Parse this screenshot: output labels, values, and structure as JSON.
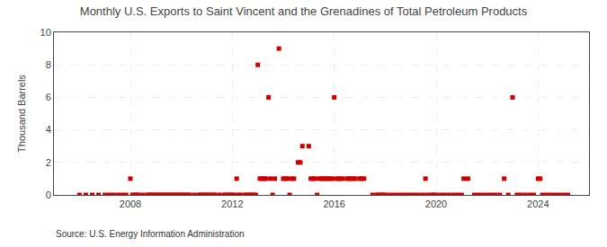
{
  "chart_data": {
    "type": "scatter",
    "title": "Monthly U.S. Exports to Saint Vincent and the Grenadines of Total Petroleum Products",
    "ylabel": "Thousand Barrels",
    "annotations": [
      "Source: U.S. Energy Information Administration"
    ],
    "color": "#cc0000",
    "marker": "square",
    "grid": true,
    "xlim": [
      2005.0,
      2026.0
    ],
    "xticks": [
      2008,
      2012,
      2016,
      2020,
      2024
    ],
    "ylim": [
      0,
      10
    ],
    "yticks": [
      0,
      2,
      4,
      6,
      8,
      10
    ],
    "x": [
      2006.0,
      2006.25,
      2006.5,
      2006.75,
      2007.0,
      2007.17,
      2007.33,
      2007.5,
      2007.67,
      2007.83,
      2008.0,
      2008.08,
      2008.17,
      2008.25,
      2008.33,
      2008.5,
      2008.67,
      2008.75,
      2008.83,
      2008.92,
      2009.0,
      2009.08,
      2009.17,
      2009.25,
      2009.33,
      2009.42,
      2009.5,
      2009.58,
      2009.67,
      2009.75,
      2009.83,
      2009.92,
      2010.0,
      2010.08,
      2010.17,
      2010.25,
      2010.33,
      2010.5,
      2010.67,
      2010.75,
      2010.83,
      2010.92,
      2011.0,
      2011.08,
      2011.17,
      2011.25,
      2011.33,
      2011.5,
      2011.67,
      2011.75,
      2011.83,
      2011.92,
      2012.0,
      2012.08,
      2012.17,
      2012.25,
      2012.33,
      2012.5,
      2012.58,
      2012.67,
      2012.75,
      2012.83,
      2012.92,
      2013.0,
      2013.08,
      2013.17,
      2013.25,
      2013.33,
      2013.42,
      2013.5,
      2013.58,
      2013.67,
      2013.83,
      2014.0,
      2014.08,
      2014.17,
      2014.25,
      2014.33,
      2014.42,
      2014.58,
      2014.67,
      2014.75,
      2015.0,
      2015.08,
      2015.17,
      2015.25,
      2015.33,
      2015.42,
      2015.5,
      2015.58,
      2015.67,
      2015.75,
      2015.83,
      2015.92,
      2016.0,
      2016.08,
      2016.17,
      2016.25,
      2016.33,
      2016.5,
      2016.58,
      2016.67,
      2016.75,
      2016.83,
      2017.0,
      2017.08,
      2017.17,
      2017.5,
      2017.67,
      2017.75,
      2017.83,
      2017.92,
      2018.0,
      2018.17,
      2018.33,
      2018.5,
      2018.67,
      2018.83,
      2019.0,
      2019.17,
      2019.33,
      2019.5,
      2019.58,
      2019.67,
      2019.83,
      2019.92,
      2020.0,
      2020.17,
      2020.33,
      2020.5,
      2020.67,
      2020.83,
      2021.0,
      2021.08,
      2021.25,
      2021.5,
      2021.67,
      2021.83,
      2022.0,
      2022.17,
      2022.33,
      2022.5,
      2022.67,
      2022.83,
      2023.0,
      2023.17,
      2023.33,
      2023.5,
      2023.67,
      2023.83,
      2024.0,
      2024.08,
      2024.17,
      2024.33,
      2024.5,
      2024.67,
      2024.83,
      2025.0,
      2025.17
    ],
    "values": [
      0,
      0,
      0,
      0,
      0,
      0,
      0,
      0,
      0,
      0,
      1,
      0,
      0,
      0,
      0,
      0,
      0,
      0,
      0,
      0,
      0,
      0,
      0,
      0,
      0,
      0,
      0,
      0,
      0,
      0,
      0,
      0,
      0,
      0,
      0,
      0,
      0,
      0,
      0,
      0,
      0,
      0,
      0,
      0,
      0,
      0,
      0,
      0,
      0,
      0,
      0,
      0,
      0,
      0,
      1,
      0,
      0,
      0,
      0,
      0,
      0,
      0,
      0,
      8,
      1,
      1,
      1,
      1,
      6,
      1,
      0,
      1,
      9,
      1,
      1,
      1,
      0,
      1,
      1,
      2,
      2,
      3,
      3,
      1,
      1,
      1,
      0,
      1,
      1,
      1,
      1,
      1,
      1,
      1,
      6,
      1,
      1,
      1,
      1,
      1,
      1,
      1,
      1,
      1,
      1,
      1,
      1,
      0,
      0,
      0,
      0,
      0,
      0,
      0,
      0,
      0,
      0,
      0,
      0,
      0,
      0,
      0,
      1,
      0,
      0,
      0,
      0,
      0,
      0,
      0,
      0,
      0,
      0,
      1,
      1,
      0,
      0,
      0,
      0,
      0,
      0,
      0,
      1,
      0,
      6,
      0,
      0,
      0,
      0,
      0,
      1,
      1,
      0,
      0,
      0,
      0,
      0,
      0,
      0
    ]
  }
}
